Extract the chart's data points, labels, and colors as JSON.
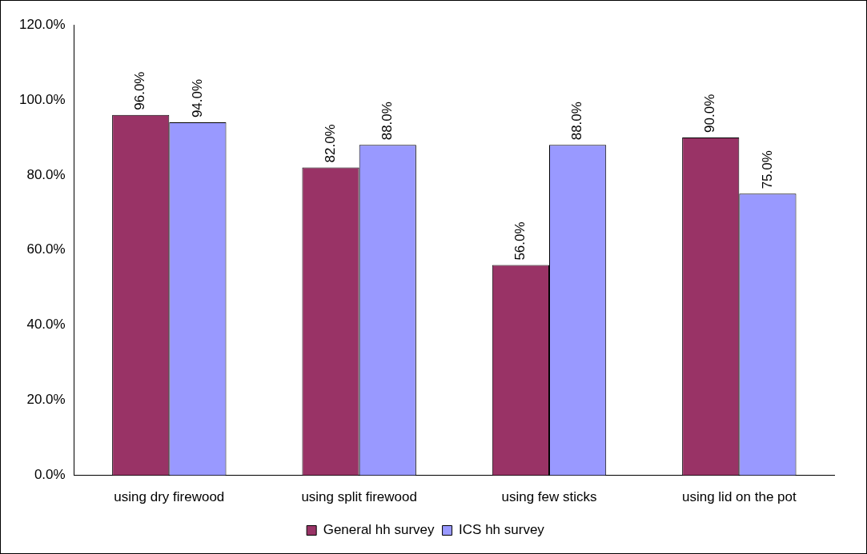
{
  "chart_data": {
    "type": "bar",
    "categories": [
      "using dry firewood",
      "using split firewood",
      "using few sticks",
      "using lid on the pot"
    ],
    "series": [
      {
        "name": "General hh survey",
        "color": "#993366",
        "values": [
          96,
          82,
          56,
          90
        ],
        "value_labels": [
          "96.0%",
          "82.0%",
          "56.0%",
          "90.0%"
        ]
      },
      {
        "name": "ICS hh survey",
        "color": "#9999ff",
        "values": [
          94,
          88,
          88,
          75
        ],
        "value_labels": [
          "94.0%",
          "88.0%",
          "88.0%",
          "75.0%"
        ]
      }
    ],
    "ylim": [
      0,
      120
    ],
    "yticks": [
      {
        "value": 0,
        "label": "0.0%"
      },
      {
        "value": 20,
        "label": "20.0%"
      },
      {
        "value": 40,
        "label": "40.0%"
      },
      {
        "value": 60,
        "label": "60.0%"
      },
      {
        "value": 80,
        "label": "80.0%"
      },
      {
        "value": 100,
        "label": "100.0%"
      },
      {
        "value": 120,
        "label": "120.0%"
      }
    ],
    "grid": false,
    "legend": "bottom"
  }
}
